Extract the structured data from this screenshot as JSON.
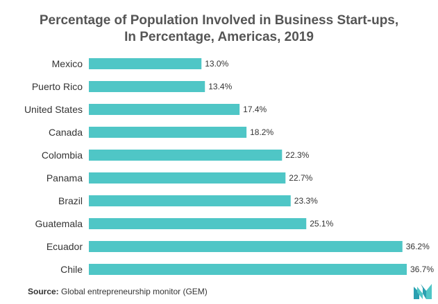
{
  "title": {
    "line1": "Percentage of Population Involved in Business Start-ups,",
    "line2": "In Percentage, Americas, 2019"
  },
  "source": {
    "label": "Source:",
    "text": "Global entrepreneurship monitor (GEM)"
  },
  "logo_icon": "mordor-intelligence-logo",
  "colors": {
    "bar": "#4fc6c6",
    "text": "#333333",
    "title": "#555555"
  },
  "chart_data": {
    "type": "bar",
    "orientation": "horizontal",
    "categories": [
      "Mexico",
      "Puerto Rico",
      "United States",
      "Canada",
      "Colombia",
      "Panama",
      "Brazil",
      "Guatemala",
      "Ecuador",
      "Chile"
    ],
    "values": [
      13.0,
      13.4,
      17.4,
      18.2,
      22.3,
      22.7,
      23.3,
      25.1,
      36.2,
      36.7
    ],
    "labels": [
      "13.0%",
      "13.4%",
      "17.4%",
      "18.2%",
      "22.3%",
      "22.7%",
      "23.3%",
      "25.1%",
      "36.2%",
      "36.7%"
    ],
    "title": "Percentage of Population Involved in Business Start-ups, In Percentage, Americas, 2019",
    "xlabel": "",
    "ylabel": "",
    "xlim": [
      0,
      36.7
    ],
    "grid": false,
    "legend": "none"
  }
}
